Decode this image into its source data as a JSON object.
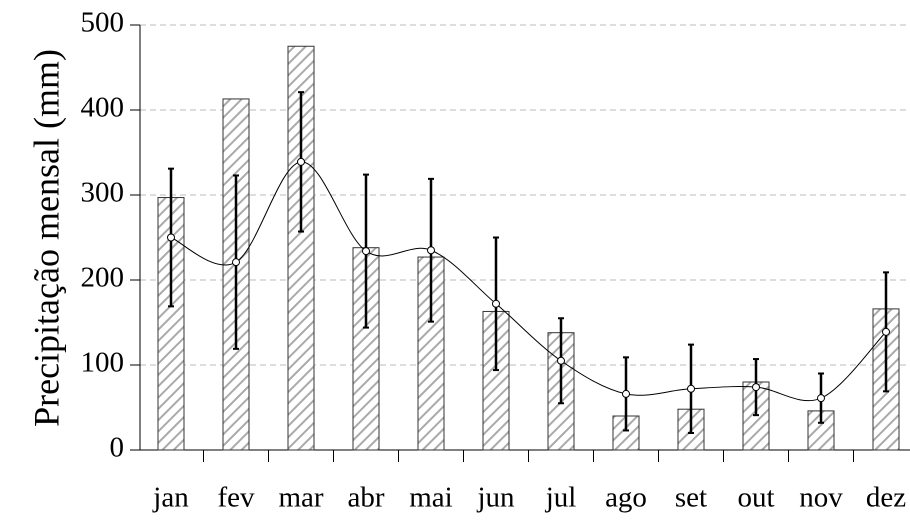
{
  "chart_data": {
    "type": "bar",
    "y_label": "Precipitação mensal (mm)",
    "categories": [
      "jan",
      "fev",
      "mar",
      "abr",
      "mai",
      "jun",
      "jul",
      "ago",
      "set",
      "out",
      "nov",
      "dez"
    ],
    "values": [
      297,
      413,
      475,
      238,
      227,
      163,
      138,
      40,
      48,
      80,
      46,
      166
    ],
    "line_values": [
      250,
      221,
      339,
      234,
      235,
      172,
      105,
      66,
      72,
      74,
      61,
      139
    ],
    "errors": [
      81,
      102,
      82,
      90,
      84,
      78,
      50,
      43,
      52,
      33,
      29,
      70
    ],
    "bar_color": "#aaaaaa",
    "line_color": "#000000",
    "ylim": [
      0,
      500
    ],
    "yticks": [
      0,
      100,
      200,
      300,
      400,
      500
    ],
    "grid": true
  }
}
